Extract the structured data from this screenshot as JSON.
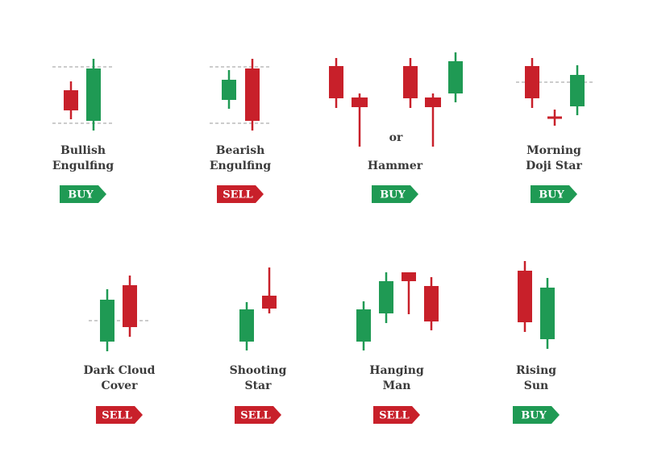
{
  "patterns": [
    {
      "name": [
        "Bullish",
        "Engulfing"
      ],
      "signal": "BUY"
    },
    {
      "name": [
        "Bearish",
        "Engulfing"
      ],
      "signal": "SELL"
    },
    {
      "name": [
        "Hammer"
      ],
      "connector": "or",
      "signal": "BUY"
    },
    {
      "name": [
        "Morning",
        "Doji Star"
      ],
      "signal": "BUY"
    },
    {
      "name": [
        "Dark Cloud",
        "Cover"
      ],
      "signal": "SELL"
    },
    {
      "name": [
        "Shooting",
        "Star"
      ],
      "signal": "SELL"
    },
    {
      "name": [
        "Hanging",
        "Man"
      ],
      "signal": "SELL"
    },
    {
      "name": [
        "Rising",
        "Sun"
      ],
      "signal": "BUY"
    }
  ]
}
